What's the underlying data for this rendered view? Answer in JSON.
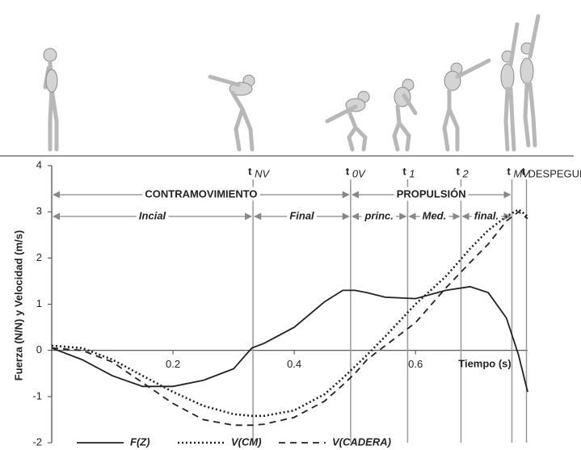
{
  "chart_data": {
    "type": "line",
    "y_label": "Fuerza (N/N) y Velocidad (m/s)",
    "x_label": "Tiempo (s)",
    "x": [
      0,
      0.05,
      0.1,
      0.15,
      0.2,
      0.25,
      0.3,
      0.33,
      0.35,
      0.4,
      0.45,
      0.48,
      0.5,
      0.52,
      0.55,
      0.6,
      0.65,
      0.69,
      0.72,
      0.75,
      0.77,
      0.785
    ],
    "series": [
      {
        "name": "F(Z)",
        "color": "#222222",
        "dash": "solid",
        "values": [
          0.05,
          -0.2,
          -0.55,
          -0.78,
          -0.78,
          -0.65,
          -0.4,
          0.05,
          0.15,
          0.5,
          1.05,
          1.3,
          1.3,
          1.25,
          1.15,
          1.12,
          1.3,
          1.38,
          1.25,
          0.7,
          -0.1,
          -0.9
        ]
      },
      {
        "name": "V(CM)",
        "color": "#222222",
        "dash": "dotted",
        "values": [
          0.1,
          0.05,
          -0.2,
          -0.55,
          -0.9,
          -1.2,
          -1.38,
          -1.42,
          -1.42,
          -1.3,
          -0.95,
          -0.6,
          -0.35,
          -0.1,
          0.3,
          1.0,
          1.6,
          2.2,
          2.6,
          2.9,
          3.05,
          2.9
        ]
      },
      {
        "name": "V(CADERA)",
        "color": "#222222",
        "dash": "dashed",
        "values": [
          0.05,
          0.0,
          -0.25,
          -0.7,
          -1.15,
          -1.5,
          -1.62,
          -1.62,
          -1.6,
          -1.45,
          -1.1,
          -0.75,
          -0.5,
          -0.2,
          0.1,
          0.6,
          1.35,
          1.9,
          2.3,
          2.8,
          3.0,
          2.85
        ]
      }
    ],
    "xlim": [
      0,
      0.785
    ],
    "ylim": [
      -2,
      4
    ],
    "xticks": [
      0.2,
      0.4,
      0.6
    ],
    "yticks": [
      -2,
      -1,
      0,
      1,
      2,
      3,
      4
    ],
    "markers": [
      {
        "label": "t",
        "subscript": "NV",
        "x": 0.332
      },
      {
        "label": "t",
        "subscript": "0V",
        "x": 0.493
      },
      {
        "label": "t",
        "subscript": "1",
        "x": 0.587
      },
      {
        "label": "t",
        "subscript": "2",
        "x": 0.675
      },
      {
        "label": "t",
        "subscript": "MV",
        "x": 0.759
      },
      {
        "label": "t",
        "subscript": "DESPEGUE",
        "x": 0.783
      }
    ],
    "phases": [
      {
        "label": "CONTRAMOVIMIENTO",
        "from": 0,
        "to": 0.493,
        "y": 3.37,
        "style": "upper"
      },
      {
        "label": "PROPULSIÓN",
        "from": 0.493,
        "to": 0.759,
        "y": 3.37,
        "style": "upper"
      },
      {
        "label": "Incial",
        "from": 0,
        "to": 0.332,
        "y": 2.9,
        "style": "italic"
      },
      {
        "label": "Final",
        "from": 0.332,
        "to": 0.493,
        "y": 2.9,
        "style": "italic"
      },
      {
        "label": "princ.",
        "from": 0.493,
        "to": 0.587,
        "y": 2.9,
        "style": "italic"
      },
      {
        "label": "Med.",
        "from": 0.587,
        "to": 0.675,
        "y": 2.9,
        "style": "italic"
      },
      {
        "label": "final.",
        "from": 0.675,
        "to": 0.759,
        "y": 2.9,
        "style": "italic"
      }
    ]
  }
}
